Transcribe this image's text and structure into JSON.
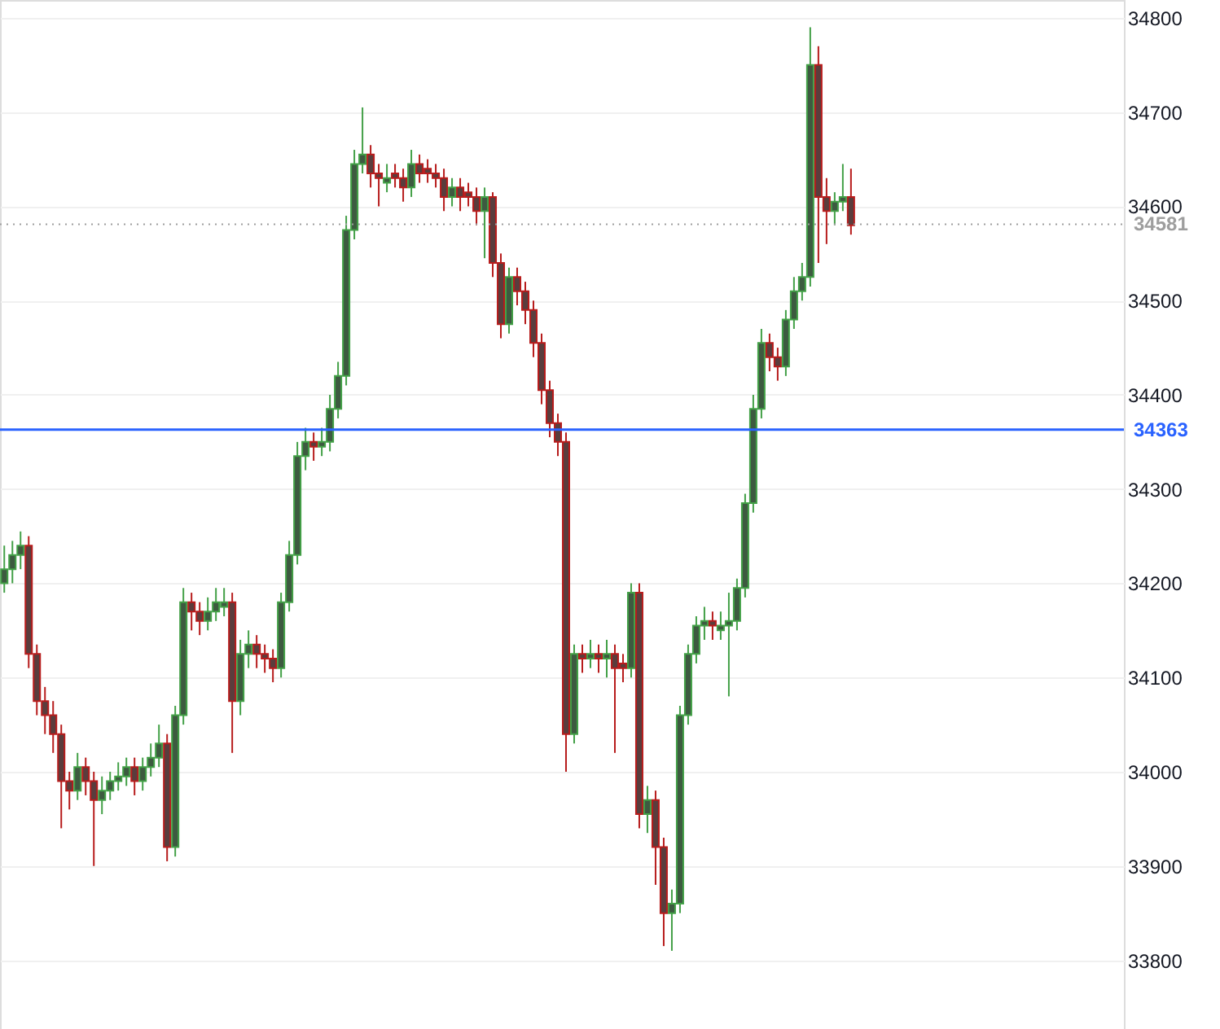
{
  "chart_data": {
    "type": "candlestick",
    "categories": [
      null,
      null,
      null,
      null,
      null,
      null,
      null,
      null,
      null,
      null,
      null,
      null,
      null,
      null,
      null,
      null,
      null,
      null,
      null,
      null,
      null,
      null,
      null,
      null,
      null,
      null,
      null,
      null,
      null,
      null,
      null,
      null,
      null,
      null,
      null,
      null,
      null,
      null,
      null,
      null,
      null,
      null,
      null,
      null,
      null,
      null,
      null,
      null,
      null,
      null,
      null,
      null,
      null,
      null,
      null,
      null,
      null,
      null,
      null,
      null,
      null,
      null,
      null,
      null,
      null,
      null,
      null,
      null,
      null,
      null,
      null,
      null,
      null,
      null,
      null,
      null,
      null,
      null,
      null,
      null,
      null,
      null,
      null,
      null,
      null,
      null,
      null,
      null,
      null,
      null,
      null,
      null,
      null,
      null,
      null,
      null,
      null,
      null,
      null,
      null,
      null,
      null,
      null,
      null,
      null,
      null,
      null,
      null,
      null,
      null,
      null,
      null,
      null,
      null,
      null,
      null,
      null,
      null,
      null,
      null,
      null,
      null,
      null,
      null,
      null,
      null,
      null,
      null,
      null,
      null,
      null,
      null,
      null,
      null,
      null,
      null,
      null,
      null
    ],
    "ohlc": [
      [
        34200,
        34240,
        34190,
        34215
      ],
      [
        34215,
        34245,
        34200,
        34230
      ],
      [
        34230,
        34255,
        34215,
        34240
      ],
      [
        34240,
        34250,
        34110,
        34125
      ],
      [
        34125,
        34135,
        34060,
        34075
      ],
      [
        34075,
        34090,
        34040,
        34060
      ],
      [
        34060,
        34075,
        34020,
        34040
      ],
      [
        34040,
        34050,
        33940,
        33990
      ],
      [
        33990,
        34000,
        33960,
        33980
      ],
      [
        33980,
        34020,
        33970,
        34005
      ],
      [
        34005,
        34015,
        33975,
        33990
      ],
      [
        33990,
        34000,
        33900,
        33970
      ],
      [
        33970,
        33995,
        33955,
        33980
      ],
      [
        33980,
        34000,
        33970,
        33990
      ],
      [
        33990,
        34010,
        33980,
        33995
      ],
      [
        33995,
        34015,
        33985,
        34005
      ],
      [
        34005,
        34015,
        33975,
        33990
      ],
      [
        33990,
        34015,
        33980,
        34005
      ],
      [
        34005,
        34030,
        33995,
        34015
      ],
      [
        34015,
        34050,
        34005,
        34030
      ],
      [
        34030,
        34040,
        33905,
        33920
      ],
      [
        33920,
        34070,
        33910,
        34060
      ],
      [
        34060,
        34195,
        34050,
        34180
      ],
      [
        34180,
        34190,
        34150,
        34170
      ],
      [
        34170,
        34180,
        34145,
        34160
      ],
      [
        34160,
        34185,
        34150,
        34170
      ],
      [
        34170,
        34195,
        34160,
        34180
      ],
      [
        34175,
        34195,
        34165,
        34180
      ],
      [
        34180,
        34190,
        34020,
        34075
      ],
      [
        34075,
        34140,
        34060,
        34125
      ],
      [
        34125,
        34150,
        34110,
        34135
      ],
      [
        34135,
        34145,
        34110,
        34125
      ],
      [
        34125,
        34135,
        34105,
        34120
      ],
      [
        34120,
        34130,
        34095,
        34110
      ],
      [
        34110,
        34190,
        34100,
        34180
      ],
      [
        34180,
        34245,
        34170,
        34230
      ],
      [
        34230,
        34350,
        34220,
        34335
      ],
      [
        34335,
        34365,
        34320,
        34350
      ],
      [
        34350,
        34360,
        34330,
        34345
      ],
      [
        34345,
        34365,
        34335,
        34350
      ],
      [
        34350,
        34400,
        34340,
        34385
      ],
      [
        34385,
        34435,
        34375,
        34420
      ],
      [
        34420,
        34590,
        34410,
        34575
      ],
      [
        34575,
        34660,
        34565,
        34645
      ],
      [
        34645,
        34705,
        34635,
        34655
      ],
      [
        34655,
        34665,
        34620,
        34635
      ],
      [
        34635,
        34645,
        34600,
        34630
      ],
      [
        34625,
        34645,
        34615,
        34630
      ],
      [
        34635,
        34645,
        34620,
        34630
      ],
      [
        34630,
        34640,
        34605,
        34620
      ],
      [
        34620,
        34660,
        34610,
        34645
      ],
      [
        34645,
        34655,
        34625,
        34635
      ],
      [
        34640,
        34650,
        34625,
        34635
      ],
      [
        34635,
        34645,
        34620,
        34630
      ],
      [
        34630,
        34640,
        34595,
        34610
      ],
      [
        34610,
        34630,
        34600,
        34620
      ],
      [
        34620,
        34630,
        34595,
        34610
      ],
      [
        34615,
        34625,
        34600,
        34610
      ],
      [
        34610,
        34620,
        34580,
        34595
      ],
      [
        34595,
        34620,
        34545,
        34610
      ],
      [
        34610,
        34615,
        34525,
        34540
      ],
      [
        34540,
        34550,
        34460,
        34475
      ],
      [
        34475,
        34535,
        34465,
        34525
      ],
      [
        34525,
        34535,
        34495,
        34510
      ],
      [
        34510,
        34520,
        34475,
        34490
      ],
      [
        34490,
        34500,
        34440,
        34455
      ],
      [
        34455,
        34465,
        34390,
        34405
      ],
      [
        34405,
        34415,
        34355,
        34370
      ],
      [
        34370,
        34380,
        34335,
        34350
      ],
      [
        34350,
        34360,
        34000,
        34040
      ],
      [
        34040,
        34135,
        34030,
        34125
      ],
      [
        34125,
        34135,
        34105,
        34120
      ],
      [
        34120,
        34140,
        34110,
        34125
      ],
      [
        34125,
        34135,
        34105,
        34120
      ],
      [
        34120,
        34140,
        34100,
        34125
      ],
      [
        34125,
        34135,
        34020,
        34110
      ],
      [
        34115,
        34125,
        34095,
        34110
      ],
      [
        34110,
        34200,
        34100,
        34190
      ],
      [
        34190,
        34200,
        33940,
        33955
      ],
      [
        33955,
        33985,
        33935,
        33970
      ],
      [
        33970,
        33980,
        33880,
        33920
      ],
      [
        33920,
        33930,
        33815,
        33850
      ],
      [
        33850,
        33875,
        33810,
        33860
      ],
      [
        33860,
        34070,
        33850,
        34060
      ],
      [
        34060,
        34135,
        34050,
        34125
      ],
      [
        34125,
        34165,
        34115,
        34155
      ],
      [
        34155,
        34175,
        34140,
        34160
      ],
      [
        34160,
        34170,
        34140,
        34155
      ],
      [
        34150,
        34170,
        34140,
        34155
      ],
      [
        34155,
        34190,
        34080,
        34160
      ],
      [
        34160,
        34205,
        34150,
        34195
      ],
      [
        34195,
        34295,
        34185,
        34285
      ],
      [
        34285,
        34400,
        34275,
        34385
      ],
      [
        34385,
        34470,
        34375,
        34455
      ],
      [
        34455,
        34465,
        34425,
        34440
      ],
      [
        34440,
        34450,
        34415,
        34430
      ],
      [
        34430,
        34490,
        34420,
        34480
      ],
      [
        34480,
        34525,
        34470,
        34510
      ],
      [
        34510,
        34540,
        34500,
        34525
      ],
      [
        34525,
        34790,
        34515,
        34750
      ],
      [
        34750,
        34770,
        34540,
        34610
      ],
      [
        34610,
        34630,
        34560,
        34595
      ],
      [
        34595,
        34615,
        34580,
        34605
      ],
      [
        34605,
        34645,
        34595,
        34610
      ],
      [
        34610,
        34640,
        34570,
        34580
      ],
      null,
      null,
      null,
      null,
      null,
      null,
      null,
      null,
      null,
      null,
      null,
      null,
      null,
      null,
      null,
      null,
      null,
      null,
      null,
      null,
      null,
      null,
      null,
      null,
      null,
      null,
      null,
      null,
      null,
      null,
      null,
      null,
      null
    ],
    "ylim": [
      33727,
      34819
    ],
    "yticks": [
      33800,
      33900,
      34000,
      34100,
      34200,
      34300,
      34400,
      34500,
      34600,
      34700,
      34800
    ],
    "grid": "y",
    "tick_labels": "y",
    "ref_lines": [
      {
        "axis": "y",
        "value": 34363,
        "label": "34363",
        "color": "#2962ff",
        "line_style": "solid"
      },
      {
        "axis": "y",
        "value": 34581,
        "label": "34581",
        "color": "#9e9e9e",
        "line_style": "dotted"
      }
    ]
  }
}
